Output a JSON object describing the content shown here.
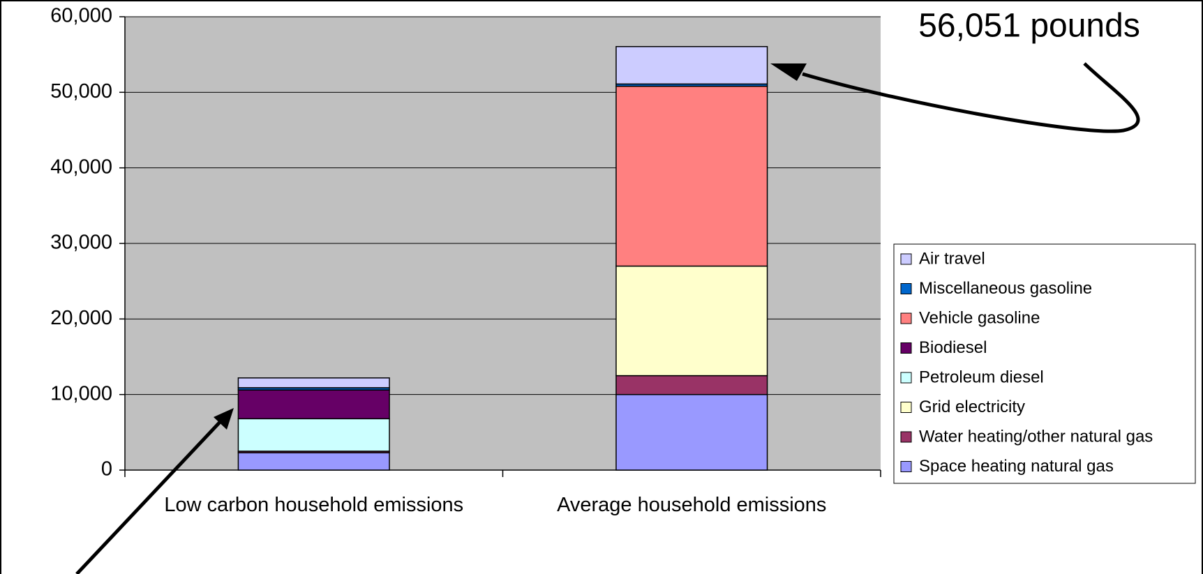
{
  "chart_data": {
    "type": "stacked_bar",
    "categories": [
      "Low carbon household emissions",
      "Average household emissions"
    ],
    "series": [
      {
        "name": "Space heating natural gas",
        "color": "#9999ff",
        "values": [
          2300,
          10000
        ]
      },
      {
        "name": "Water heating/other natural gas",
        "color": "#993366",
        "values": [
          200,
          2500
        ]
      },
      {
        "name": "Grid electricity",
        "color": "#ffffcc",
        "values": [
          0,
          14500
        ]
      },
      {
        "name": "Petroleum diesel",
        "color": "#ccffff",
        "values": [
          4300,
          0
        ]
      },
      {
        "name": "Biodiesel",
        "color": "#660066",
        "values": [
          3800,
          0
        ]
      },
      {
        "name": "Vehicle gasoline",
        "color": "#ff8080",
        "values": [
          0,
          23800
        ]
      },
      {
        "name": "Miscellaneous gasoline",
        "color": "#0066cc",
        "values": [
          300,
          300
        ]
      },
      {
        "name": "Air travel",
        "color": "#ccccff",
        "values": [
          1300,
          4951
        ]
      }
    ],
    "ylim": [
      0,
      60000
    ],
    "yticks": [
      0,
      {
        "value": 10000,
        "label": "10,000"
      },
      {
        "value": 20000,
        "label": "20,000"
      },
      {
        "value": 30000,
        "label": "30,000"
      },
      {
        "value": 40000,
        "label": "40,000"
      },
      {
        "value": 50000,
        "label": "50,000"
      },
      {
        "value": 60000,
        "label": "60,000"
      }
    ],
    "grid": true,
    "plot_background": "#c0c0c0",
    "legend": "right",
    "annotation": "56,051 pounds"
  }
}
